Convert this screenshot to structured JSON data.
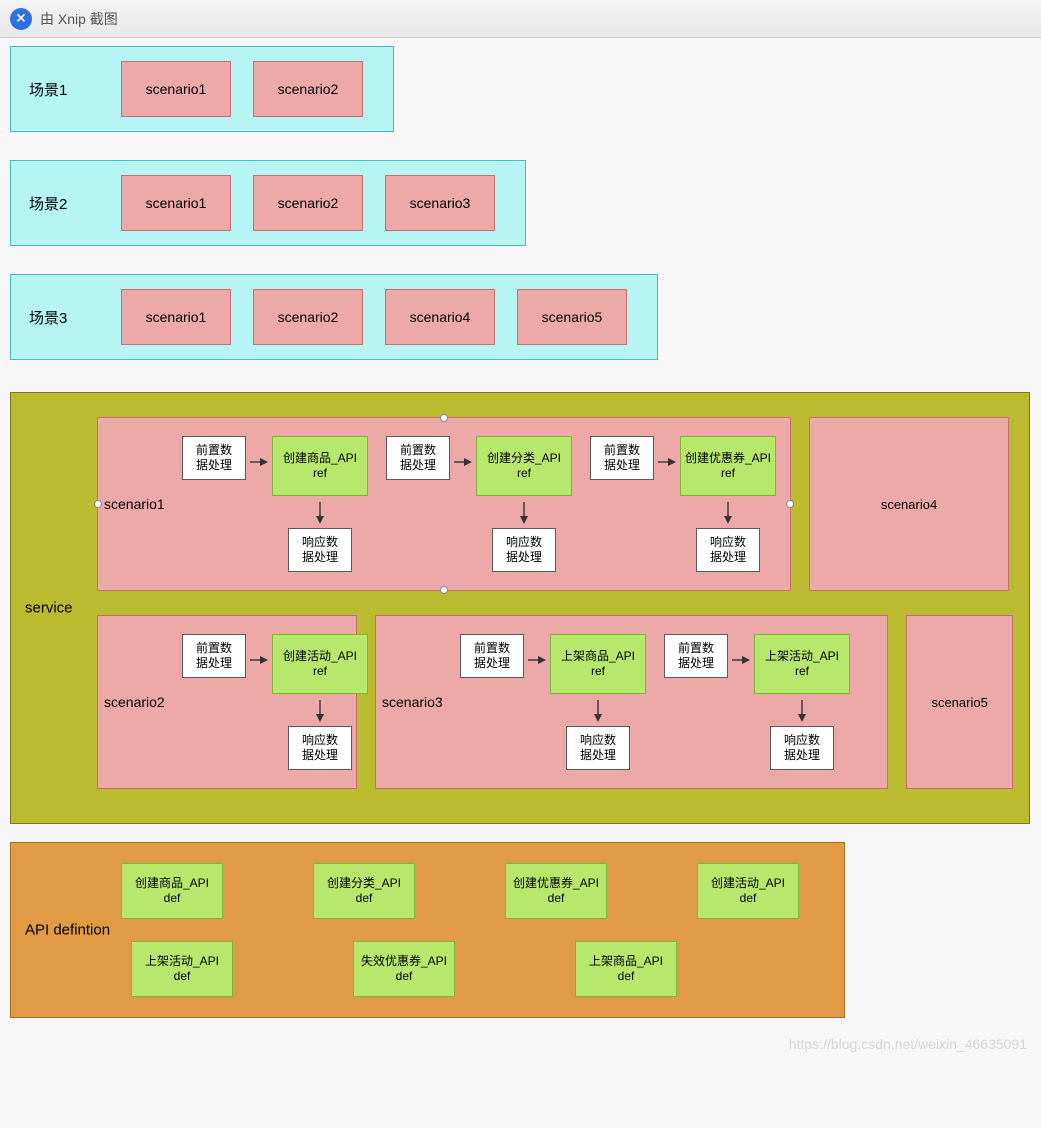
{
  "titlebar": {
    "text": "由 Xnip 截图"
  },
  "watermark": "https://blog.csdn.net/weixin_46635091",
  "colors": {
    "cyan_fill": "#b7f4f4",
    "cyan_border": "#3fbdbd",
    "pink_fill": "#eda9a8",
    "pink_border": "#c46e6d",
    "olive_fill": "#bcbb2f",
    "olive_border": "#7a7a1a",
    "green_fill": "#b7e86b",
    "green_border": "#7cb63b",
    "orange_fill": "#e29b45",
    "orange_border": "#a66a22",
    "white_box_border": "#5a5a5a"
  },
  "text": {
    "pre": "前置数\n据处理",
    "resp": "响应数\n据处理"
  },
  "scenes": [
    {
      "label": "场景1",
      "chips": [
        "scenario1",
        "scenario2"
      ]
    },
    {
      "label": "场景2",
      "chips": [
        "scenario1",
        "scenario2",
        "scenario3"
      ]
    },
    {
      "label": "场景3",
      "chips": [
        "scenario1",
        "scenario2",
        "scenario4",
        "scenario5"
      ]
    }
  ],
  "service": {
    "label": "service",
    "row1": {
      "scenario1": {
        "label": "scenario1",
        "steps": [
          {
            "api": "创建商品_API\nref"
          },
          {
            "api": "创建分类_API\nref"
          },
          {
            "api": "创建优惠券_API\nref"
          }
        ]
      },
      "scenario4": {
        "label": "scenario4"
      }
    },
    "row2": {
      "scenario2": {
        "label": "scenario2",
        "steps": [
          {
            "api": "创建活动_API\nref"
          }
        ]
      },
      "scenario3": {
        "label": "scenario3",
        "steps": [
          {
            "api": "上架商品_API\nref"
          },
          {
            "api": "上架活动_API\nref"
          }
        ]
      },
      "scenario5": {
        "label": "scenario5"
      }
    }
  },
  "apidef": {
    "label": "API defintion",
    "row1": [
      "创建商品_API\ndef",
      "创建分类_API\ndef",
      "创建优惠券_API\ndef",
      "创建活动_API\ndef"
    ],
    "row2": [
      "上架活动_API\ndef",
      "失效优惠券_API\ndef",
      "上架商品_API\ndef"
    ]
  }
}
